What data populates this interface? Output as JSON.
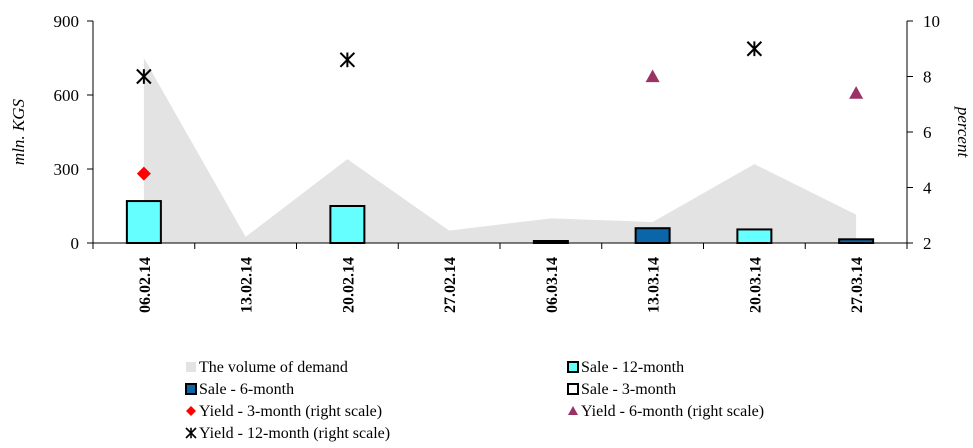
{
  "chart_data": {
    "type": "bar",
    "title": "",
    "categories": [
      "06.02.14",
      "13.02.14",
      "20.02.14",
      "27.02.14",
      "06.03.14",
      "13.03.14",
      "20.03.14",
      "27.03.14"
    ],
    "y_left": {
      "label": "mln. KGS",
      "lim": [
        0,
        900
      ],
      "ticks": [
        0,
        300,
        600,
        900
      ]
    },
    "y_right": {
      "label": "percent",
      "lim": [
        2,
        10
      ],
      "ticks": [
        2,
        4,
        6,
        8,
        10
      ]
    },
    "grid": false,
    "legend_position": "bottom",
    "series": [
      {
        "name": "The volume of demand",
        "kind": "area",
        "axis": "left",
        "color": "#e3e3e3",
        "values": [
          750,
          25,
          340,
          50,
          100,
          85,
          320,
          115
        ]
      },
      {
        "name": "Sale - 12-month",
        "kind": "bar",
        "axis": "left",
        "color": "#66ffff",
        "values": [
          170,
          null,
          150,
          null,
          null,
          null,
          55,
          null
        ]
      },
      {
        "name": "Sale - 6-month",
        "kind": "bar",
        "axis": "left",
        "color": "#0a66a8",
        "values": [
          null,
          null,
          null,
          null,
          null,
          60,
          null,
          15
        ]
      },
      {
        "name": "Sale - 3-month",
        "kind": "bar",
        "axis": "left",
        "color": "#ffffff",
        "values": [
          null,
          null,
          null,
          null,
          5,
          null,
          null,
          null
        ]
      },
      {
        "name": "Yield - 3-month (right scale)",
        "kind": "marker",
        "marker": "diamond",
        "axis": "right",
        "color": "#ff0000",
        "values": [
          4.5,
          null,
          null,
          null,
          null,
          null,
          null,
          null
        ]
      },
      {
        "name": "Yield - 6-month (right scale)",
        "kind": "marker",
        "marker": "triangle",
        "axis": "right",
        "color": "#993366",
        "values": [
          null,
          null,
          null,
          null,
          null,
          8.0,
          null,
          7.4
        ]
      },
      {
        "name": "Yield - 12-month (right scale)",
        "kind": "marker",
        "marker": "star",
        "axis": "right",
        "color": "#000000",
        "values": [
          8.0,
          null,
          8.6,
          null,
          null,
          null,
          9.0,
          null
        ]
      }
    ]
  }
}
